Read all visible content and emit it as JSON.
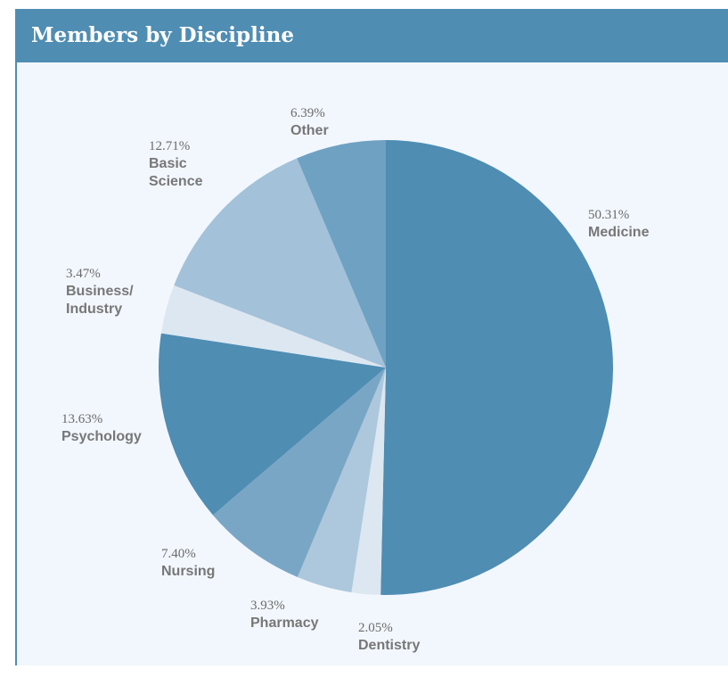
{
  "chart_data": {
    "type": "pie",
    "title": "Members by Discipline",
    "categories": [
      "Medicine",
      "Dentistry",
      "Pharmacy",
      "Nursing",
      "Psychology",
      "Business/ Industry",
      "Basic Science",
      "Other"
    ],
    "values": [
      50.31,
      2.05,
      3.93,
      7.4,
      13.63,
      3.47,
      12.71,
      6.39
    ],
    "value_labels": [
      "50.31%",
      "2.05%",
      "3.93%",
      "7.40%",
      "13.63%",
      "3.47%",
      "12.71%",
      "6.39%"
    ],
    "colors": [
      "#4f8db3",
      "#dce7f1",
      "#adc8dc",
      "#7aa6c6",
      "#4f8db3",
      "#dce7f1",
      "#a3c1d9",
      "#6fa1c3"
    ]
  }
}
